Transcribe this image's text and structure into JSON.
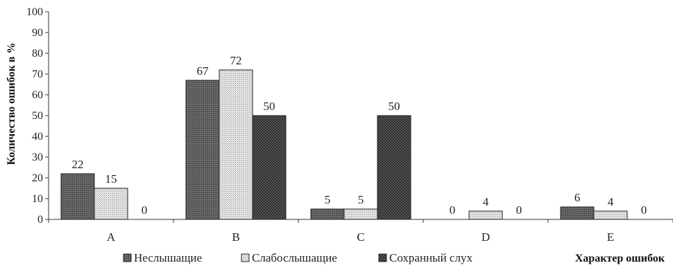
{
  "chart_data": {
    "type": "bar",
    "categories": [
      "A",
      "B",
      "C",
      "D",
      "E"
    ],
    "series": [
      {
        "name": "Неслышащие",
        "values": [
          22,
          67,
          5,
          0,
          6
        ],
        "color": "#6b6b6b",
        "pattern": "dense-dots"
      },
      {
        "name": "Слабослышащие",
        "values": [
          15,
          72,
          5,
          4,
          4
        ],
        "color": "#d9d9d9",
        "pattern": "light-dots"
      },
      {
        "name": "Сохранный слух",
        "values": [
          0,
          50,
          50,
          0,
          0
        ],
        "color": "#3a3a3a",
        "pattern": "checker"
      }
    ],
    "title": "",
    "xlabel": "Характер ошибок",
    "ylabel": "Количество ошибок в %",
    "ylim": [
      0,
      100
    ],
    "yticks": [
      0,
      10,
      20,
      30,
      40,
      50,
      60,
      70,
      80,
      90,
      100
    ],
    "grid": false,
    "legend_position": "bottom"
  }
}
